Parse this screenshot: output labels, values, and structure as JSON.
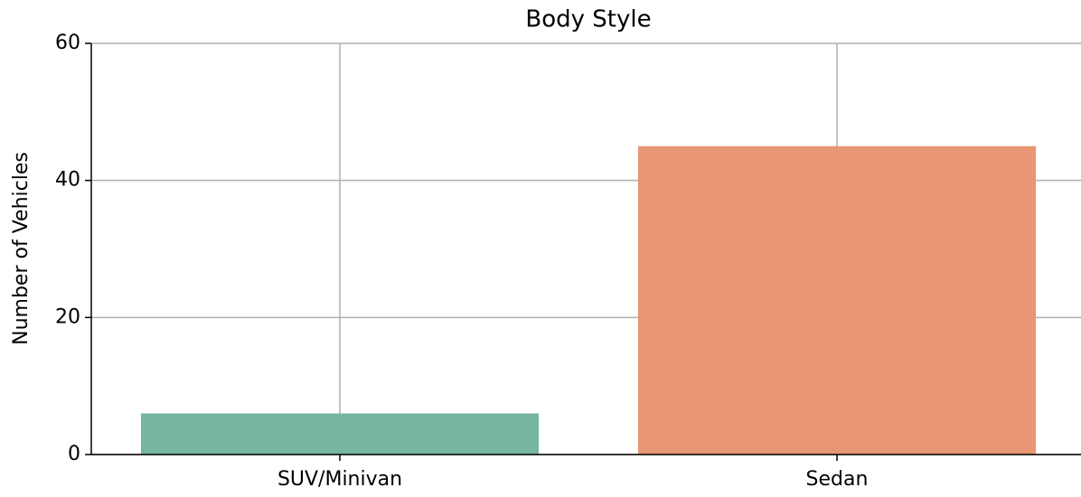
{
  "chart_data": {
    "type": "bar",
    "title": "Body Style",
    "y_label": "Number of Vehicles",
    "categories": [
      "SUV/Minivan",
      "Sedan"
    ],
    "values": [
      6,
      45
    ],
    "colors": [
      "#76b5a0",
      "#e89673"
    ],
    "ylim": [
      0,
      60
    ],
    "yticks": [
      0,
      20,
      40,
      60
    ],
    "grid": true
  }
}
